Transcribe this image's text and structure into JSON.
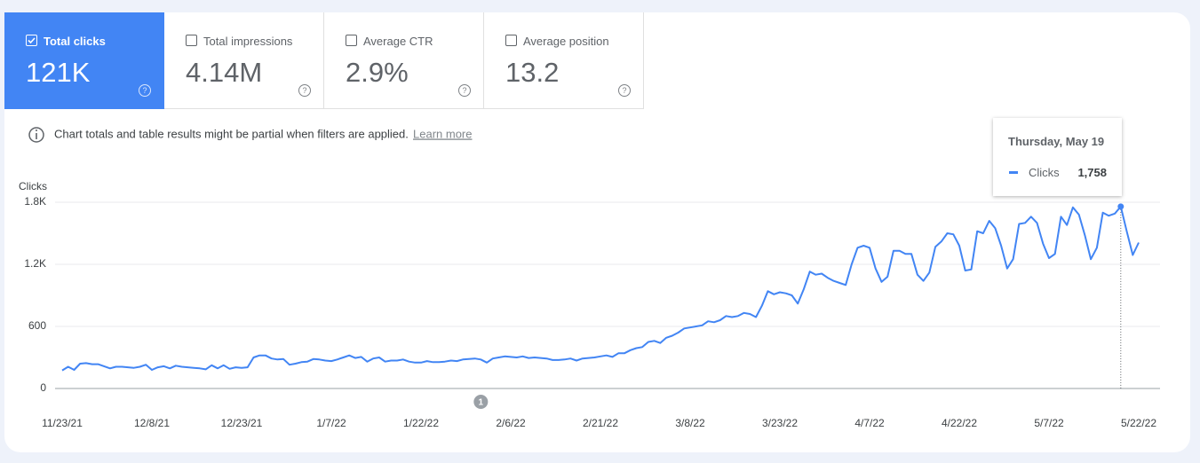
{
  "metrics": [
    {
      "label": "Total clicks",
      "value": "121K",
      "selected": true
    },
    {
      "label": "Total impressions",
      "value": "4.14M",
      "selected": false
    },
    {
      "label": "Average CTR",
      "value": "2.9%",
      "selected": false
    },
    {
      "label": "Average position",
      "value": "13.2",
      "selected": false
    }
  ],
  "notice": {
    "text": "Chart totals and table results might be partial when filters are applied.",
    "link": "Learn more"
  },
  "chart_data": {
    "type": "line",
    "y_label": "Clicks",
    "ylim": [
      0,
      1800
    ],
    "yticks": [
      0,
      600,
      {
        "value": 1200,
        "label": "1.2K"
      },
      {
        "value": 1800,
        "label": "1.8K"
      }
    ],
    "grid": true,
    "x": [
      "11/23/21",
      "11/24/21",
      "11/25/21",
      "11/26/21",
      "11/27/21",
      "11/28/21",
      "11/29/21",
      "11/30/21",
      "12/1/21",
      "12/2/21",
      "12/3/21",
      "12/4/21",
      "12/5/21",
      "12/6/21",
      "12/7/21",
      "12/8/21",
      "12/9/21",
      "12/10/21",
      "12/11/21",
      "12/12/21",
      "12/13/21",
      "12/14/21",
      "12/15/21",
      "12/16/21",
      "12/17/21",
      "12/18/21",
      "12/19/21",
      "12/20/21",
      "12/21/21",
      "12/22/21",
      "12/23/21",
      "12/24/21",
      "12/25/21",
      "12/26/21",
      "12/27/21",
      "12/28/21",
      "12/29/21",
      "12/30/21",
      "12/31/21",
      "1/1/22",
      "1/2/22",
      "1/3/22",
      "1/4/22",
      "1/5/22",
      "1/6/22",
      "1/7/22",
      "1/8/22",
      "1/9/22",
      "1/10/22",
      "1/11/22",
      "1/12/22",
      "1/13/22",
      "1/14/22",
      "1/15/22",
      "1/16/22",
      "1/17/22",
      "1/18/22",
      "1/19/22",
      "1/20/22",
      "1/21/22",
      "1/22/22",
      "1/23/22",
      "1/24/22",
      "1/25/22",
      "1/26/22",
      "1/27/22",
      "1/28/22",
      "1/29/22",
      "1/30/22",
      "1/31/22",
      "2/1/22",
      "2/2/22",
      "2/3/22",
      "2/4/22",
      "2/5/22",
      "2/6/22",
      "2/7/22",
      "2/8/22",
      "2/9/22",
      "2/10/22",
      "2/11/22",
      "2/12/22",
      "2/13/22",
      "2/14/22",
      "2/15/22",
      "2/16/22",
      "2/17/22",
      "2/18/22",
      "2/19/22",
      "2/20/22",
      "2/21/22",
      "2/22/22",
      "2/23/22",
      "2/24/22",
      "2/25/22",
      "2/26/22",
      "2/27/22",
      "2/28/22",
      "3/1/22",
      "3/2/22",
      "3/3/22",
      "3/4/22",
      "3/5/22",
      "3/6/22",
      "3/7/22",
      "3/8/22",
      "3/9/22",
      "3/10/22",
      "3/11/22",
      "3/12/22",
      "3/13/22",
      "3/14/22",
      "3/15/22",
      "3/16/22",
      "3/17/22",
      "3/18/22",
      "3/19/22",
      "3/20/22",
      "3/21/22",
      "3/22/22",
      "3/23/22",
      "3/24/22",
      "3/25/22",
      "3/26/22",
      "3/27/22",
      "3/28/22",
      "3/29/22",
      "3/30/22",
      "3/31/22",
      "4/1/22",
      "4/2/22",
      "4/3/22",
      "4/4/22",
      "4/5/22",
      "4/6/22",
      "4/7/22",
      "4/8/22",
      "4/9/22",
      "4/10/22",
      "4/11/22",
      "4/12/22",
      "4/13/22",
      "4/14/22",
      "4/15/22",
      "4/16/22",
      "4/17/22",
      "4/18/22",
      "4/19/22",
      "4/20/22",
      "4/21/22",
      "4/22/22",
      "4/23/22",
      "4/24/22",
      "4/25/22",
      "4/26/22",
      "4/27/22",
      "4/28/22",
      "4/29/22",
      "4/30/22",
      "5/1/22",
      "5/2/22",
      "5/3/22",
      "5/4/22",
      "5/5/22",
      "5/6/22",
      "5/7/22",
      "5/8/22",
      "5/9/22",
      "5/10/22",
      "5/11/22",
      "5/12/22",
      "5/13/22",
      "5/14/22",
      "5/15/22",
      "5/16/22",
      "5/17/22",
      "5/18/22",
      "5/19/22",
      "5/20/22",
      "5/21/22",
      "5/22/22"
    ],
    "xticks": [
      "11/23/21",
      "12/8/21",
      "12/23/21",
      "1/7/22",
      "1/22/22",
      "2/6/22",
      "2/21/22",
      "3/8/22",
      "3/23/22",
      "4/7/22",
      "4/22/22",
      "5/7/22",
      "5/22/22"
    ],
    "series": [
      {
        "name": "Clicks",
        "color": "#4285f4",
        "values": [
          175,
          210,
          180,
          240,
          245,
          235,
          235,
          215,
          195,
          210,
          210,
          205,
          200,
          210,
          230,
          180,
          205,
          215,
          195,
          220,
          210,
          205,
          200,
          195,
          185,
          225,
          195,
          225,
          190,
          205,
          200,
          205,
          300,
          320,
          320,
          290,
          280,
          285,
          230,
          240,
          255,
          260,
          285,
          280,
          270,
          265,
          280,
          300,
          320,
          295,
          305,
          260,
          290,
          300,
          260,
          270,
          270,
          280,
          260,
          250,
          250,
          265,
          255,
          255,
          260,
          270,
          265,
          280,
          285,
          290,
          280,
          250,
          290,
          300,
          310,
          305,
          300,
          310,
          295,
          300,
          295,
          290,
          275,
          275,
          280,
          290,
          270,
          290,
          295,
          300,
          310,
          320,
          305,
          340,
          340,
          370,
          390,
          400,
          450,
          460,
          440,
          490,
          510,
          540,
          580,
          590,
          600,
          610,
          650,
          640,
          660,
          700,
          690,
          700,
          730,
          720,
          690,
          800,
          940,
          910,
          930,
          920,
          900,
          820,
          960,
          1130,
          1100,
          1110,
          1070,
          1040,
          1020,
          1000,
          1200,
          1360,
          1380,
          1360,
          1160,
          1030,
          1080,
          1330,
          1330,
          1300,
          1300,
          1100,
          1040,
          1120,
          1370,
          1420,
          1500,
          1490,
          1380,
          1140,
          1150,
          1520,
          1500,
          1620,
          1550,
          1380,
          1160,
          1250,
          1590,
          1600,
          1660,
          1600,
          1400,
          1260,
          1300,
          1660,
          1580,
          1750,
          1680,
          1480,
          1250,
          1360,
          1700,
          1670,
          1690,
          1758,
          1520,
          1290,
          1410
        ]
      }
    ],
    "annotations": [
      {
        "x": "2/1/22",
        "label": "1"
      }
    ],
    "tooltip": {
      "title": "Thursday, May 19",
      "value_label": "1,758"
    }
  }
}
